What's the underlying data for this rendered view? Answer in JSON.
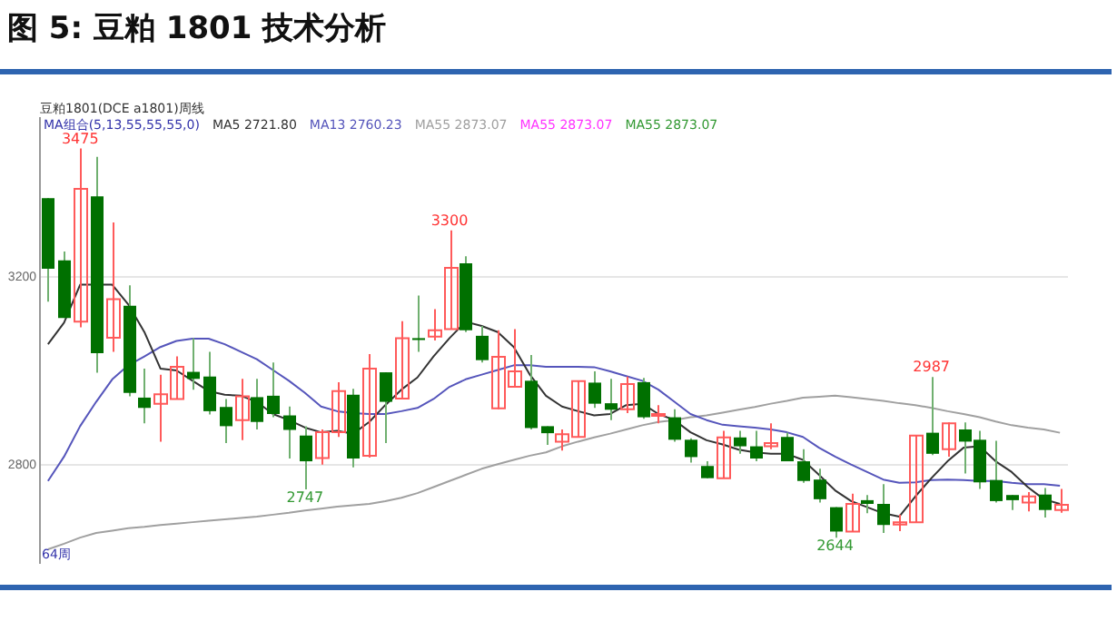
{
  "chart_data": {
    "type": "candlestick",
    "title": "图 5: 豆粕 1801 技术分析",
    "subtitle": "豆粕1801(DCE a1801)周线",
    "legend_title": "MA组合(5,13,55,55,55,0)",
    "categories": [
      null,
      null,
      null,
      null,
      null,
      null,
      null,
      null,
      null,
      null,
      null,
      null,
      null,
      null,
      null,
      null,
      null,
      null,
      null,
      null,
      null,
      null,
      null,
      null,
      null,
      null,
      null,
      null,
      null,
      null,
      null,
      null,
      null,
      null,
      null,
      null,
      null,
      null,
      null,
      null,
      null,
      null,
      null,
      null,
      null,
      null,
      null,
      null,
      null,
      null,
      null,
      null,
      null,
      null,
      null,
      null,
      null,
      null,
      null,
      null,
      null,
      null,
      null,
      null
    ],
    "ohlc": [
      [
        3369,
        3369,
        3148,
        3218
      ],
      [
        3236,
        3255,
        3113,
        3113
      ],
      [
        3105,
        3475,
        3093,
        3389
      ],
      [
        3373,
        3457,
        2996,
        3038
      ],
      [
        3071,
        3317,
        3041,
        3153
      ],
      [
        3139,
        3183,
        2946,
        2953
      ],
      [
        2943,
        3005,
        2888,
        2921
      ],
      [
        2930,
        2992,
        2849,
        2950
      ],
      [
        2940,
        3031,
        2940,
        3009
      ],
      [
        2998,
        3070,
        2960,
        2983
      ],
      [
        2988,
        3041,
        2907,
        2914
      ],
      [
        2923,
        2940,
        2846,
        2882
      ],
      [
        2895,
        2983,
        2852,
        2946
      ],
      [
        2944,
        2983,
        2875,
        2891
      ],
      [
        2947,
        3018,
        2901,
        2908
      ],
      [
        2905,
        2924,
        2813,
        2874
      ],
      [
        2862,
        2882,
        2747,
        2807
      ],
      [
        2814,
        2875,
        2800,
        2869
      ],
      [
        2869,
        2976,
        2859,
        2957
      ],
      [
        2949,
        2962,
        2794,
        2813
      ],
      [
        2819,
        3036,
        2815,
        3005
      ],
      [
        2997,
        2997,
        2846,
        2934
      ],
      [
        2941,
        3106,
        2941,
        3070
      ],
      [
        3070,
        3161,
        3041,
        3066
      ],
      [
        3073,
        3132,
        3065,
        3087
      ],
      [
        3089,
        3300,
        3089,
        3220
      ],
      [
        3230,
        3245,
        3083,
        3087
      ],
      [
        3075,
        3096,
        3018,
        3023
      ],
      [
        2920,
        3087,
        2918,
        3030
      ],
      [
        2966,
        3089,
        2966,
        2999
      ],
      [
        2979,
        3034,
        2875,
        2878
      ],
      [
        2882,
        2882,
        2842,
        2867
      ],
      [
        2849,
        2875,
        2830,
        2865
      ],
      [
        2859,
        2978,
        2859,
        2978
      ],
      [
        2975,
        2999,
        2921,
        2930
      ],
      [
        2931,
        2983,
        2895,
        2917
      ],
      [
        2918,
        2988,
        2910,
        2972
      ],
      [
        2976,
        2985,
        2898,
        2901
      ],
      [
        2904,
        2927,
        2888,
        2908
      ],
      [
        2901,
        2918,
        2849,
        2853
      ],
      [
        2853,
        2856,
        2804,
        2816
      ],
      [
        2797,
        2807,
        2771,
        2771
      ],
      [
        2771,
        2872,
        2771,
        2858
      ],
      [
        2858,
        2872,
        2823,
        2839
      ],
      [
        2839,
        2872,
        2807,
        2813
      ],
      [
        2839,
        2888,
        2833,
        2846
      ],
      [
        2859,
        2868,
        2807,
        2807
      ],
      [
        2807,
        2833,
        2761,
        2765
      ],
      [
        2768,
        2791,
        2719,
        2726
      ],
      [
        2709,
        2709,
        2644,
        2657
      ],
      [
        2657,
        2738,
        2657,
        2716
      ],
      [
        2724,
        2735,
        2696,
        2716
      ],
      [
        2716,
        2758,
        2654,
        2671
      ],
      [
        2672,
        2693,
        2658,
        2677
      ],
      [
        2677,
        2862,
        2677,
        2862
      ],
      [
        2868,
        2987,
        2820,
        2823
      ],
      [
        2833,
        2890,
        2817,
        2888
      ],
      [
        2875,
        2890,
        2781,
        2849
      ],
      [
        2853,
        2872,
        2748,
        2762
      ],
      [
        2767,
        2851,
        2719,
        2722
      ],
      [
        2735,
        2735,
        2703,
        2724
      ],
      [
        2719,
        2741,
        2700,
        2732
      ],
      [
        2736,
        2750,
        2687,
        2703
      ],
      [
        2703,
        2748,
        2697,
        2714
      ]
    ],
    "series": [
      {
        "name": "MA5 2721.80",
        "type": "line",
        "color": "#333333",
        "values": [
          3057,
          3103,
          3184,
          3184,
          3184,
          3142,
          3083,
          3005,
          3001,
          2979,
          2957,
          2949,
          2947,
          2934,
          2908,
          2895,
          2879,
          2869,
          2872,
          2866,
          2891,
          2927,
          2960,
          2986,
          3031,
          3070,
          3105,
          3096,
          3083,
          3051,
          2992,
          2947,
          2924,
          2914,
          2905,
          2908,
          2927,
          2930,
          2908,
          2895,
          2869,
          2852,
          2843,
          2832,
          2826,
          2823,
          2823,
          2810,
          2778,
          2745,
          2722,
          2709,
          2696,
          2689,
          2732,
          2771,
          2807,
          2836,
          2839,
          2807,
          2784,
          2752,
          2726,
          2716
        ]
      },
      {
        "name": "MA13 2760.23",
        "type": "line",
        "color": "#5555bb",
        "values": [
          2765,
          2817,
          2882,
          2934,
          2982,
          3012,
          3031,
          3051,
          3064,
          3069,
          3069,
          3057,
          3041,
          3025,
          3002,
          2979,
          2953,
          2924,
          2914,
          2910,
          2908,
          2908,
          2914,
          2921,
          2940,
          2966,
          2982,
          2992,
          3002,
          3012,
          3012,
          3009,
          3009,
          3009,
          3008,
          2999,
          2989,
          2979,
          2960,
          2934,
          2908,
          2895,
          2885,
          2882,
          2879,
          2875,
          2869,
          2859,
          2836,
          2817,
          2800,
          2784,
          2768,
          2761,
          2762,
          2767,
          2768,
          2767,
          2765,
          2765,
          2761,
          2758,
          2758,
          2755
        ]
      },
      {
        "name": "MA55 2873.07",
        "type": "line",
        "color": "#a0a0a0",
        "values": [
          2619,
          2631,
          2644,
          2654,
          2659,
          2664,
          2667,
          2671,
          2674,
          2677,
          2680,
          2683,
          2686,
          2689,
          2693,
          2697,
          2702,
          2706,
          2710,
          2713,
          2716,
          2722,
          2729,
          2739,
          2752,
          2765,
          2778,
          2791,
          2801,
          2810,
          2819,
          2826,
          2839,
          2849,
          2858,
          2866,
          2875,
          2884,
          2891,
          2895,
          2901,
          2905,
          2911,
          2917,
          2923,
          2930,
          2936,
          2943,
          2945,
          2947,
          2944,
          2940,
          2936,
          2931,
          2927,
          2921,
          2914,
          2908,
          2901,
          2892,
          2884,
          2879,
          2875,
          2868
        ]
      }
    ],
    "ylim": [
      2590,
      3540
    ],
    "yticks": [
      2800,
      3200
    ],
    "grid": "y",
    "legend": "top left",
    "tick_labels": "y",
    "marker": "none",
    "line_style": "solid",
    "annotations": [
      "64周",
      "MA55 2873.07",
      "MA55 2873.07",
      {
        "text": "3475",
        "y": 3475
      },
      {
        "text": "3300",
        "y": 3300
      },
      {
        "text": "2747",
        "y": 2747
      },
      {
        "text": "2644",
        "y": 2644
      },
      {
        "text": "2987",
        "y": 2987
      }
    ]
  }
}
